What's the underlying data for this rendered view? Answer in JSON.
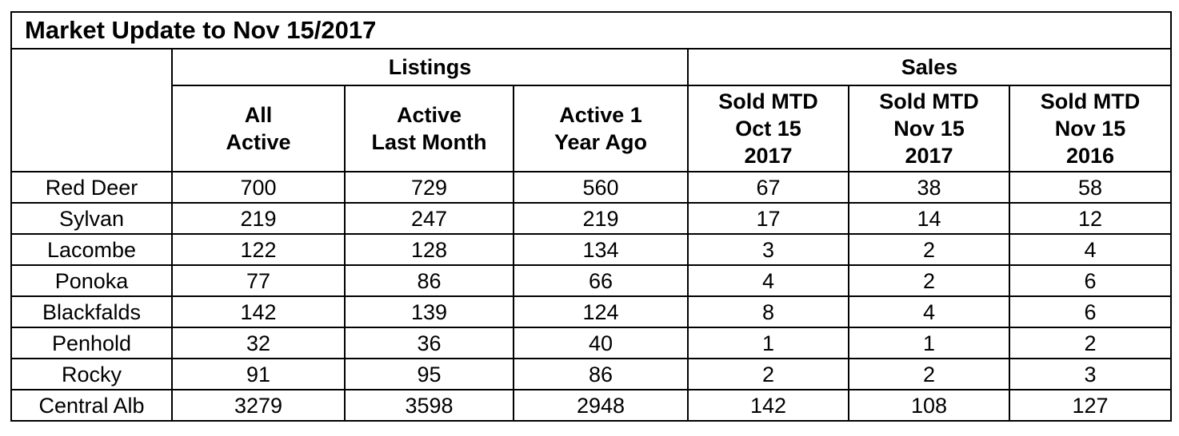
{
  "chart_data": {
    "type": "table",
    "title": "Market Update to Nov 15/2017",
    "column_groups": [
      {
        "label": "Listings",
        "span": 3
      },
      {
        "label": "Sales",
        "span": 3
      }
    ],
    "columns": [
      [
        "All",
        "Active"
      ],
      [
        "Active",
        "Last Month"
      ],
      [
        "Active 1",
        "Year Ago"
      ],
      [
        "Sold MTD",
        "Oct 15",
        "2017"
      ],
      [
        "Sold MTD",
        "Nov 15",
        "2017"
      ],
      [
        "Sold MTD",
        "Nov 15",
        "2016"
      ]
    ],
    "rows": [
      {
        "label": "Red Deer",
        "values": [
          "700",
          "729",
          "560",
          "67",
          "38",
          "58"
        ]
      },
      {
        "label": "Sylvan",
        "values": [
          "219",
          "247",
          "219",
          "17",
          "14",
          "12"
        ]
      },
      {
        "label": "Lacombe",
        "values": [
          "122",
          "128",
          "134",
          "3",
          "2",
          "4"
        ]
      },
      {
        "label": "Ponoka",
        "values": [
          "77",
          "86",
          "66",
          "4",
          "2",
          "6"
        ]
      },
      {
        "label": "Blackfalds",
        "values": [
          "142",
          "139",
          "124",
          "8",
          "4",
          "6"
        ]
      },
      {
        "label": "Penhold",
        "values": [
          "32",
          "36",
          "40",
          "1",
          "1",
          "2"
        ]
      },
      {
        "label": "Rocky",
        "values": [
          "91",
          "95",
          "86",
          "2",
          "2",
          "3"
        ]
      },
      {
        "label": "Central Alb",
        "values": [
          "3279",
          "3598",
          "2948",
          "142",
          "108",
          "127"
        ]
      }
    ]
  }
}
